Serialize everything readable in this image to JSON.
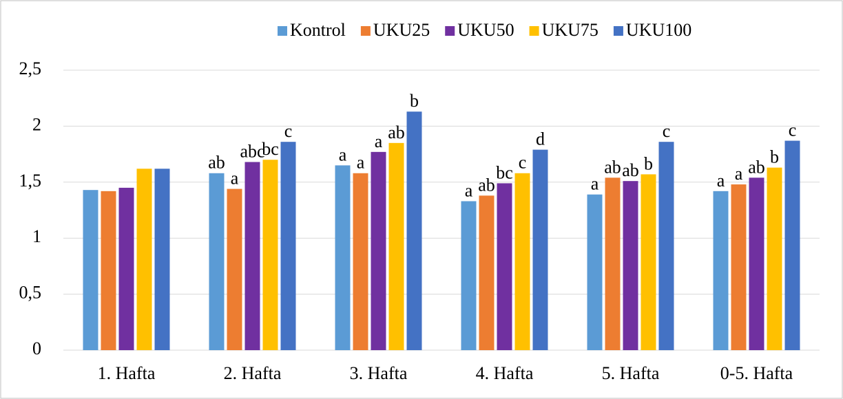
{
  "chart_data": {
    "type": "bar",
    "categories": [
      "1. Hafta",
      "2. Hafta",
      "3. Hafta",
      "4. Hafta",
      "5. Hafta",
      "0-5. Hafta"
    ],
    "series": [
      {
        "name": "Kontrol",
        "color": "#5b9bd5",
        "values": [
          1.43,
          1.58,
          1.65,
          1.33,
          1.39,
          1.42
        ],
        "annotations": [
          null,
          "ab",
          "a",
          "a",
          "a",
          "a"
        ]
      },
      {
        "name": "UKU25",
        "color": "#ed7d31",
        "values": [
          1.42,
          1.44,
          1.58,
          1.38,
          1.54,
          1.48
        ],
        "annotations": [
          null,
          "a",
          "a",
          "ab",
          "ab",
          "a"
        ]
      },
      {
        "name": "UKU50",
        "color": "#7030a0",
        "values": [
          1.45,
          1.68,
          1.77,
          1.49,
          1.51,
          1.54
        ],
        "annotations": [
          null,
          "abc",
          "a",
          "bc",
          "ab",
          "ab"
        ]
      },
      {
        "name": "UKU75",
        "color": "#ffc000",
        "values": [
          1.62,
          1.7,
          1.85,
          1.58,
          1.57,
          1.63
        ],
        "annotations": [
          null,
          "bc",
          "ab",
          "c",
          "b",
          "b"
        ]
      },
      {
        "name": "UKU100",
        "color": "#4472c4",
        "values": [
          1.62,
          1.86,
          2.13,
          1.79,
          1.86,
          1.87
        ],
        "annotations": [
          null,
          "c",
          "b",
          "d",
          "c",
          "c"
        ]
      }
    ],
    "ylim": [
      0,
      2.5
    ],
    "yticks": [
      0,
      {
        "value": 0.5,
        "label": "0,5"
      },
      1,
      {
        "value": 1.5,
        "label": "1,5"
      },
      2,
      {
        "value": 2.5,
        "label": "2,5"
      }
    ],
    "grid": true,
    "legend": "top"
  }
}
